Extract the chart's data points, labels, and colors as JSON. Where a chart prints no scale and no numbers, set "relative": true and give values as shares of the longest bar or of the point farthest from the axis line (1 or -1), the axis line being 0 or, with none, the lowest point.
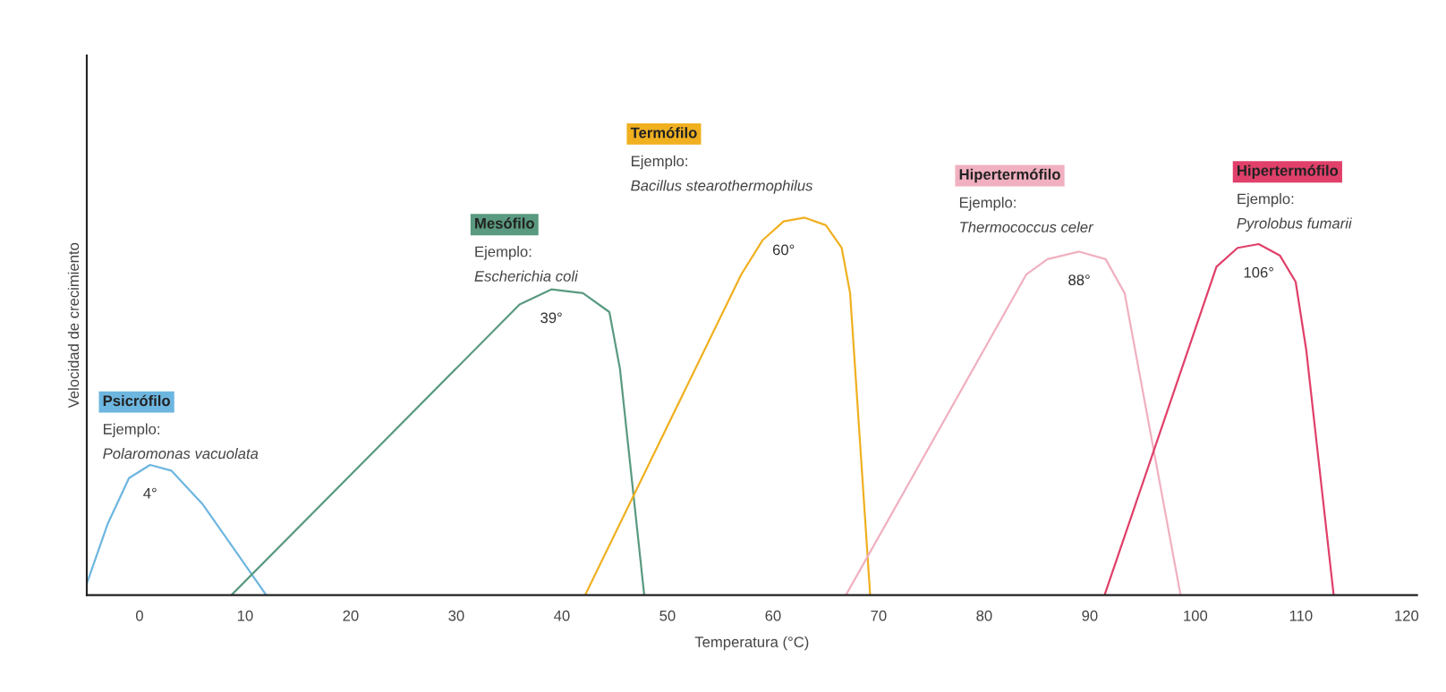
{
  "chart_data": {
    "type": "line",
    "relative": true,
    "xlabel": "Temperatura (°C)",
    "ylabel": "Velocidad de crecimiento",
    "xlim": [
      -5,
      121
    ],
    "xticks": [
      0,
      10,
      20,
      30,
      40,
      50,
      60,
      70,
      80,
      90,
      100,
      110,
      120
    ],
    "grid": false,
    "legend": false,
    "marker": "none",
    "line_style": "solid",
    "series": [
      {
        "name": "Psicrófilo",
        "color": "#6db6e0",
        "x": [
          -5,
          -3,
          -1,
          1,
          3,
          6,
          9,
          12
        ],
        "values": [
          0.03,
          0.19,
          0.31,
          0.345,
          0.33,
          0.24,
          0.12,
          0
        ]
      },
      {
        "name": "Mesófilo",
        "color": "#5a9a80",
        "x": [
          8.7,
          36,
          39,
          42,
          44.5,
          45.5,
          47.8
        ],
        "values": [
          0,
          0.77,
          0.81,
          0.8,
          0.75,
          0.6,
          0
        ]
      },
      {
        "name": "Termófilo",
        "color": "#f0b020",
        "x": [
          42.2,
          57,
          59,
          61,
          63,
          65,
          66.5,
          67.3,
          69.2
        ],
        "values": [
          0,
          0.85,
          0.94,
          0.99,
          1,
          0.98,
          0.92,
          0.8,
          0
        ]
      },
      {
        "name": "Hipertermófilo",
        "color": "#f0b0c0",
        "x": [
          66.9,
          84,
          86,
          89,
          91.5,
          93.3,
          98.6
        ],
        "values": [
          0,
          0.85,
          0.89,
          0.91,
          0.89,
          0.8,
          0
        ]
      },
      {
        "name": "Hipertermófilo",
        "color": "#e0406a",
        "x": [
          91.4,
          102,
          104,
          106,
          108,
          109.5,
          110.5,
          113.1
        ],
        "values": [
          0,
          0.87,
          0.92,
          0.93,
          0.9,
          0.83,
          0.65,
          0
        ]
      }
    ],
    "annotations": [
      "Ejemplo:",
      "Polaromonas vacuolata",
      {
        "text": "4°",
        "x": 1,
        "y": 0.345
      },
      "Ejemplo:",
      "Escherichia coli",
      {
        "text": "39°",
        "x": 39,
        "y": 0.81
      },
      "Ejemplo:",
      "Bacillus stearothermophilus",
      {
        "text": "60°",
        "x": 61,
        "y": 0.99
      },
      "Ejemplo:",
      "Thermococcus celer",
      {
        "text": "88°",
        "x": 89,
        "y": 0.91
      },
      "Ejemplo:",
      "Pyrolobus fumarii",
      {
        "text": "106°",
        "x": 106,
        "y": 0.93
      }
    ]
  }
}
